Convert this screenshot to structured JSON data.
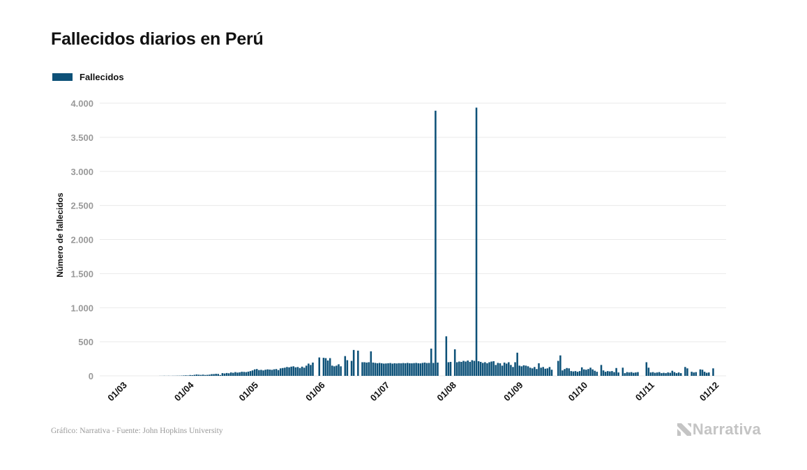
{
  "page": {
    "title": "Fallecidos diarios en Perú"
  },
  "footer": {
    "credit": "Gráfico: Narrativa - Fuente: John Hopkins University",
    "brand": "Narrativa"
  },
  "colors": {
    "bar": "#0d5178",
    "grid": "#e9e9e9",
    "brand": "#c4c4c4"
  },
  "chart_data": {
    "type": "bar",
    "title": "Fallecidos diarios en Perú",
    "ylabel": "Número de fallecidos",
    "xlabel": "",
    "ylim": [
      0,
      4000
    ],
    "yticks": [
      0,
      500,
      1000,
      1500,
      2000,
      2500,
      3000,
      3500,
      4000
    ],
    "ytick_labels": [
      "0",
      "500",
      "1.000",
      "1.500",
      "2.000",
      "2.500",
      "3.000",
      "3.500",
      "4.000"
    ],
    "xtick_labels": [
      "01/03",
      "01/04",
      "01/05",
      "01/06",
      "01/07",
      "01/08",
      "01/09",
      "01/10",
      "01/11",
      "01/12"
    ],
    "xtick_dates": [
      "2020-03-01",
      "2020-04-01",
      "2020-05-01",
      "2020-06-01",
      "2020-07-01",
      "2020-08-01",
      "2020-09-01",
      "2020-10-01",
      "2020-11-01",
      "2020-12-01"
    ],
    "x_start": "2020-02-21",
    "x_end": "2020-12-08",
    "legend": {
      "label": "Fallecidos",
      "placement": "top-left"
    },
    "grid": true,
    "series": [
      {
        "name": "Fallecidos",
        "values": [
          [
            "2020-03-01",
            0
          ],
          [
            "2020-03-15",
            0
          ],
          [
            "2020-03-20",
            1
          ],
          [
            "2020-03-21",
            1
          ],
          [
            "2020-03-22",
            2
          ],
          [
            "2020-03-23",
            1
          ],
          [
            "2020-03-24",
            2
          ],
          [
            "2020-03-25",
            1
          ],
          [
            "2020-03-26",
            2
          ],
          [
            "2020-03-27",
            2
          ],
          [
            "2020-03-28",
            3
          ],
          [
            "2020-03-29",
            3
          ],
          [
            "2020-03-30",
            4
          ],
          [
            "2020-03-31",
            6
          ],
          [
            "2020-04-01",
            8
          ],
          [
            "2020-04-02",
            6
          ],
          [
            "2020-04-03",
            12
          ],
          [
            "2020-04-04",
            10
          ],
          [
            "2020-04-05",
            15
          ],
          [
            "2020-04-06",
            20
          ],
          [
            "2020-04-07",
            17
          ],
          [
            "2020-04-08",
            14
          ],
          [
            "2020-04-09",
            18
          ],
          [
            "2020-04-10",
            13
          ],
          [
            "2020-04-11",
            15
          ],
          [
            "2020-04-12",
            18
          ],
          [
            "2020-04-13",
            25
          ],
          [
            "2020-04-14",
            26
          ],
          [
            "2020-04-15",
            30
          ],
          [
            "2020-04-16",
            28
          ],
          [
            "2020-04-17",
            12
          ],
          [
            "2020-04-18",
            40
          ],
          [
            "2020-04-19",
            35
          ],
          [
            "2020-04-20",
            42
          ],
          [
            "2020-04-21",
            38
          ],
          [
            "2020-04-22",
            50
          ],
          [
            "2020-04-23",
            45
          ],
          [
            "2020-04-24",
            55
          ],
          [
            "2020-04-25",
            48
          ],
          [
            "2020-04-26",
            52
          ],
          [
            "2020-04-27",
            60
          ],
          [
            "2020-04-28",
            58
          ],
          [
            "2020-04-29",
            55
          ],
          [
            "2020-04-30",
            62
          ],
          [
            "2020-05-01",
            70
          ],
          [
            "2020-05-02",
            80
          ],
          [
            "2020-05-03",
            95
          ],
          [
            "2020-05-04",
            100
          ],
          [
            "2020-05-05",
            85
          ],
          [
            "2020-05-06",
            88
          ],
          [
            "2020-05-07",
            80
          ],
          [
            "2020-05-08",
            90
          ],
          [
            "2020-05-09",
            95
          ],
          [
            "2020-05-10",
            92
          ],
          [
            "2020-05-11",
            88
          ],
          [
            "2020-05-12",
            96
          ],
          [
            "2020-05-13",
            100
          ],
          [
            "2020-05-14",
            85
          ],
          [
            "2020-05-15",
            110
          ],
          [
            "2020-05-16",
            115
          ],
          [
            "2020-05-17",
            120
          ],
          [
            "2020-05-18",
            130
          ],
          [
            "2020-05-19",
            125
          ],
          [
            "2020-05-20",
            135
          ],
          [
            "2020-05-21",
            140
          ],
          [
            "2020-05-22",
            125
          ],
          [
            "2020-05-23",
            130
          ],
          [
            "2020-05-24",
            115
          ],
          [
            "2020-05-25",
            135
          ],
          [
            "2020-05-26",
            120
          ],
          [
            "2020-05-27",
            150
          ],
          [
            "2020-05-28",
            180
          ],
          [
            "2020-05-29",
            160
          ],
          [
            "2020-05-30",
            195
          ],
          [
            "2020-06-02",
            270
          ],
          [
            "2020-06-04",
            265
          ],
          [
            "2020-06-05",
            260
          ],
          [
            "2020-06-06",
            225
          ],
          [
            "2020-06-07",
            260
          ],
          [
            "2020-06-08",
            150
          ],
          [
            "2020-06-09",
            140
          ],
          [
            "2020-06-10",
            150
          ],
          [
            "2020-06-11",
            170
          ],
          [
            "2020-06-12",
            140
          ],
          [
            "2020-06-14",
            290
          ],
          [
            "2020-06-15",
            230
          ],
          [
            "2020-06-17",
            220
          ],
          [
            "2020-06-18",
            380
          ],
          [
            "2020-06-20",
            370
          ],
          [
            "2020-06-22",
            200
          ],
          [
            "2020-06-23",
            200
          ],
          [
            "2020-06-24",
            195
          ],
          [
            "2020-06-25",
            200
          ],
          [
            "2020-06-26",
            360
          ],
          [
            "2020-06-27",
            195
          ],
          [
            "2020-06-28",
            190
          ],
          [
            "2020-06-29",
            185
          ],
          [
            "2020-06-30",
            190
          ],
          [
            "2020-07-01",
            185
          ],
          [
            "2020-07-02",
            180
          ],
          [
            "2020-07-03",
            182
          ],
          [
            "2020-07-04",
            185
          ],
          [
            "2020-07-05",
            188
          ],
          [
            "2020-07-06",
            180
          ],
          [
            "2020-07-07",
            185
          ],
          [
            "2020-07-08",
            182
          ],
          [
            "2020-07-09",
            186
          ],
          [
            "2020-07-10",
            184
          ],
          [
            "2020-07-11",
            188
          ],
          [
            "2020-07-12",
            185
          ],
          [
            "2020-07-13",
            190
          ],
          [
            "2020-07-14",
            185
          ],
          [
            "2020-07-15",
            184
          ],
          [
            "2020-07-16",
            187
          ],
          [
            "2020-07-17",
            190
          ],
          [
            "2020-07-18",
            185
          ],
          [
            "2020-07-19",
            183
          ],
          [
            "2020-07-20",
            190
          ],
          [
            "2020-07-21",
            195
          ],
          [
            "2020-07-22",
            188
          ],
          [
            "2020-07-23",
            190
          ],
          [
            "2020-07-24",
            400
          ],
          [
            "2020-07-25",
            190
          ],
          [
            "2020-07-26",
            3890
          ],
          [
            "2020-07-27",
            195
          ],
          [
            "2020-07-31",
            580
          ],
          [
            "2020-08-01",
            200
          ],
          [
            "2020-08-02",
            205
          ],
          [
            "2020-08-04",
            390
          ],
          [
            "2020-08-05",
            200
          ],
          [
            "2020-08-06",
            210
          ],
          [
            "2020-08-07",
            205
          ],
          [
            "2020-08-08",
            220
          ],
          [
            "2020-08-09",
            210
          ],
          [
            "2020-08-10",
            225
          ],
          [
            "2020-08-11",
            205
          ],
          [
            "2020-08-12",
            230
          ],
          [
            "2020-08-13",
            220
          ],
          [
            "2020-08-14",
            3935
          ],
          [
            "2020-08-15",
            215
          ],
          [
            "2020-08-16",
            205
          ],
          [
            "2020-08-17",
            190
          ],
          [
            "2020-08-18",
            200
          ],
          [
            "2020-08-19",
            185
          ],
          [
            "2020-08-20",
            200
          ],
          [
            "2020-08-21",
            210
          ],
          [
            "2020-08-22",
            215
          ],
          [
            "2020-08-23",
            160
          ],
          [
            "2020-08-24",
            190
          ],
          [
            "2020-08-25",
            185
          ],
          [
            "2020-08-26",
            150
          ],
          [
            "2020-08-27",
            195
          ],
          [
            "2020-08-28",
            180
          ],
          [
            "2020-08-29",
            200
          ],
          [
            "2020-08-30",
            160
          ],
          [
            "2020-08-31",
            130
          ],
          [
            "2020-09-01",
            200
          ],
          [
            "2020-09-02",
            340
          ],
          [
            "2020-09-03",
            150
          ],
          [
            "2020-09-04",
            140
          ],
          [
            "2020-09-05",
            155
          ],
          [
            "2020-09-06",
            150
          ],
          [
            "2020-09-07",
            140
          ],
          [
            "2020-09-08",
            120
          ],
          [
            "2020-09-09",
            110
          ],
          [
            "2020-09-10",
            130
          ],
          [
            "2020-09-11",
            100
          ],
          [
            "2020-09-12",
            185
          ],
          [
            "2020-09-13",
            120
          ],
          [
            "2020-09-14",
            130
          ],
          [
            "2020-09-15",
            105
          ],
          [
            "2020-09-16",
            110
          ],
          [
            "2020-09-17",
            130
          ],
          [
            "2020-09-18",
            90
          ],
          [
            "2020-09-21",
            220
          ],
          [
            "2020-09-22",
            300
          ],
          [
            "2020-09-23",
            80
          ],
          [
            "2020-09-24",
            100
          ],
          [
            "2020-09-25",
            115
          ],
          [
            "2020-09-26",
            110
          ],
          [
            "2020-09-27",
            70
          ],
          [
            "2020-09-28",
            65
          ],
          [
            "2020-09-29",
            70
          ],
          [
            "2020-09-30",
            60
          ],
          [
            "2020-10-01",
            70
          ],
          [
            "2020-10-02",
            125
          ],
          [
            "2020-10-03",
            95
          ],
          [
            "2020-10-04",
            90
          ],
          [
            "2020-10-05",
            100
          ],
          [
            "2020-10-06",
            120
          ],
          [
            "2020-10-07",
            95
          ],
          [
            "2020-10-08",
            75
          ],
          [
            "2020-10-09",
            60
          ],
          [
            "2020-10-11",
            160
          ],
          [
            "2020-10-12",
            80
          ],
          [
            "2020-10-13",
            60
          ],
          [
            "2020-10-14",
            70
          ],
          [
            "2020-10-15",
            65
          ],
          [
            "2020-10-16",
            70
          ],
          [
            "2020-10-17",
            55
          ],
          [
            "2020-10-18",
            115
          ],
          [
            "2020-10-19",
            50
          ],
          [
            "2020-10-21",
            120
          ],
          [
            "2020-10-22",
            40
          ],
          [
            "2020-10-23",
            55
          ],
          [
            "2020-10-24",
            50
          ],
          [
            "2020-10-25",
            55
          ],
          [
            "2020-10-26",
            45
          ],
          [
            "2020-10-27",
            50
          ],
          [
            "2020-10-28",
            55
          ],
          [
            "2020-11-01",
            200
          ],
          [
            "2020-11-02",
            120
          ],
          [
            "2020-11-03",
            50
          ],
          [
            "2020-11-04",
            55
          ],
          [
            "2020-11-05",
            45
          ],
          [
            "2020-11-06",
            50
          ],
          [
            "2020-11-07",
            55
          ],
          [
            "2020-11-08",
            40
          ],
          [
            "2020-11-09",
            45
          ],
          [
            "2020-11-10",
            40
          ],
          [
            "2020-11-11",
            50
          ],
          [
            "2020-11-12",
            45
          ],
          [
            "2020-11-13",
            75
          ],
          [
            "2020-11-14",
            55
          ],
          [
            "2020-11-15",
            40
          ],
          [
            "2020-11-16",
            50
          ],
          [
            "2020-11-17",
            40
          ],
          [
            "2020-11-19",
            130
          ],
          [
            "2020-11-20",
            110
          ],
          [
            "2020-11-22",
            60
          ],
          [
            "2020-11-23",
            50
          ],
          [
            "2020-11-24",
            55
          ],
          [
            "2020-11-26",
            95
          ],
          [
            "2020-11-27",
            90
          ],
          [
            "2020-11-28",
            60
          ],
          [
            "2020-11-29",
            45
          ],
          [
            "2020-11-30",
            50
          ],
          [
            "2020-12-02",
            110
          ]
        ]
      }
    ]
  }
}
